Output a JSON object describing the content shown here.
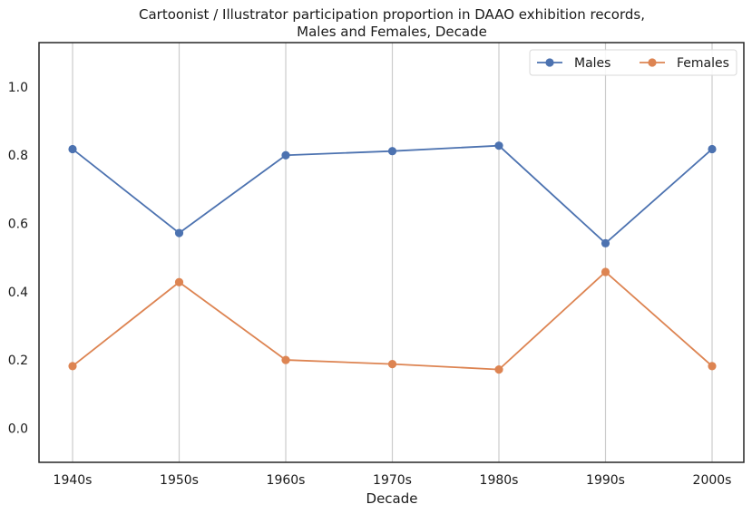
{
  "chart_data": {
    "type": "line",
    "title_line1": "Cartoonist / Illustrator participation proportion in DAAO exhibition records,",
    "title_line2": "Males and Females, Decade",
    "xlabel": "Decade",
    "ylabel": "",
    "categories": [
      "1940s",
      "1950s",
      "1960s",
      "1970s",
      "1980s",
      "1990s",
      "2000s"
    ],
    "y_ticks": [
      "0.0",
      "0.2",
      "0.4",
      "0.6",
      "0.8",
      "1.0"
    ],
    "ylim": [
      -0.1,
      1.13
    ],
    "grid": "vertical",
    "legend_position": "top-right",
    "series": [
      {
        "name": "Males",
        "color": "#4c72b0",
        "values": [
          0.818,
          0.572,
          0.8,
          0.812,
          0.828,
          0.542,
          0.818
        ]
      },
      {
        "name": "Females",
        "color": "#dd8452",
        "values": [
          0.182,
          0.428,
          0.2,
          0.188,
          0.172,
          0.458,
          0.182
        ]
      }
    ]
  }
}
